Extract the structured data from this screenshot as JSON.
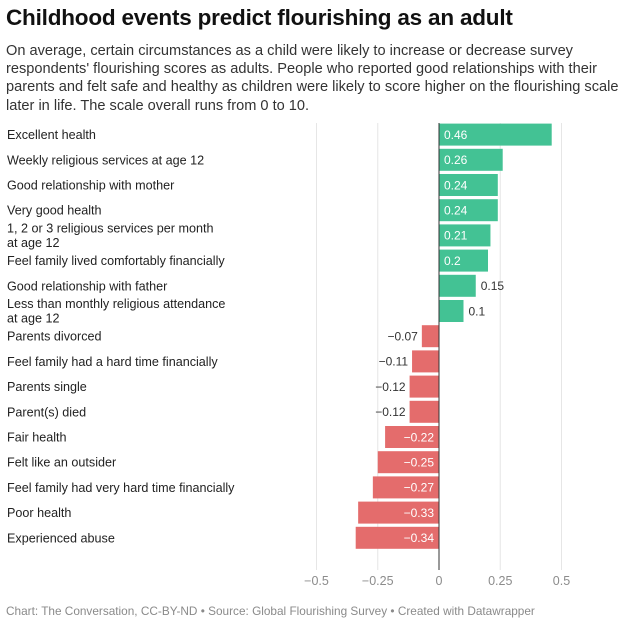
{
  "title": "Childhood events predict flourishing as an adult",
  "subtitle": "On average, certain circumstances as a child were likely to increase or decrease survey respondents' flourishing scores as adults. People who reported good relationships with their parents and felt safe and healthy as children were likely to score higher on the flourishing scale later in life. The scale overall runs from 0 to 10.",
  "footer": "Chart: The Conversation, CC-BY-ND • Source: Global Flourishing Survey • Created with Datawrapper",
  "colors": {
    "positive": "#43c294",
    "negative": "#e46c6c",
    "grid": "#e6e6e6",
    "zero": "#333333"
  },
  "chart_data": {
    "type": "bar",
    "orientation": "horizontal",
    "title": "Childhood events predict flourishing as an adult",
    "xlim": [
      -0.5,
      0.5
    ],
    "ticks": [
      "−0.5",
      "−0.25",
      "0",
      "0.25",
      "0.5"
    ],
    "tick_values": [
      -0.5,
      -0.25,
      0,
      0.25,
      0.5
    ],
    "grid": true,
    "categories": [
      [
        "Excellent health"
      ],
      [
        "Weekly religious services at age 12"
      ],
      [
        "Good relationship with mother"
      ],
      [
        "Very good health"
      ],
      [
        "1, 2 or 3 religious services per month",
        "at age 12"
      ],
      [
        "Feel family lived comfortably financially"
      ],
      [
        "Good relationship with father"
      ],
      [
        "Less than monthly religious attendance",
        "at age 12"
      ],
      [
        "Parents divorced"
      ],
      [
        "Feel family had a hard time financially"
      ],
      [
        "Parents single"
      ],
      [
        "Parent(s) died"
      ],
      [
        "Fair health"
      ],
      [
        "Felt like an outsider"
      ],
      [
        "Feel family had very hard time financially"
      ],
      [
        "Poor health"
      ],
      [
        "Experienced abuse"
      ]
    ],
    "values": [
      0.46,
      0.26,
      0.24,
      0.24,
      0.21,
      0.2,
      0.15,
      0.1,
      -0.07,
      -0.11,
      -0.12,
      -0.12,
      -0.22,
      -0.25,
      -0.27,
      -0.33,
      -0.34
    ],
    "value_labels": [
      "0.46",
      "0.26",
      "0.24",
      "0.24",
      "0.21",
      "0.2",
      "0.15",
      "0.1",
      "−0.07",
      "−0.11",
      "−0.12",
      "−0.12",
      "−0.22",
      "−0.25",
      "−0.27",
      "−0.33",
      "−0.34"
    ]
  }
}
